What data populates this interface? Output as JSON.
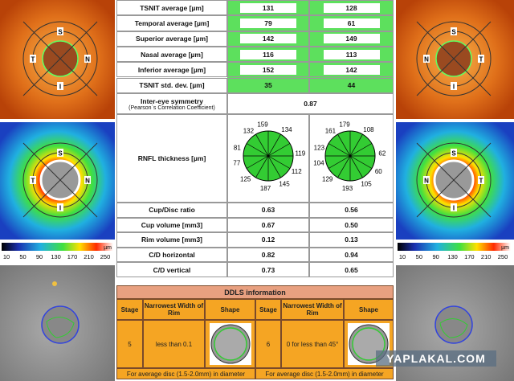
{
  "left_eye": {
    "fundus_labels": [
      "S",
      "T",
      "N",
      "I"
    ],
    "map_labels": [
      "S",
      "T",
      "N",
      "I"
    ],
    "colorbar": {
      "ticks": [
        "10",
        "50",
        "90",
        "130",
        "170",
        "210",
        "250"
      ],
      "unit": "µm"
    }
  },
  "right_eye": {
    "fundus_labels": [
      "S",
      "N",
      "T",
      "I"
    ],
    "map_labels": [
      "S",
      "N",
      "T",
      "I"
    ],
    "colorbar": {
      "ticks": [
        "10",
        "50",
        "90",
        "130",
        "170",
        "210",
        "250"
      ],
      "unit": "µm"
    }
  },
  "averages": [
    {
      "label": "TSNIT average [µm]",
      "od": "131",
      "os": "128"
    },
    {
      "label": "Temporal average [µm]",
      "od": "79",
      "os": "61"
    },
    {
      "label": "Superior average [µm]",
      "od": "142",
      "os": "149"
    },
    {
      "label": "Nasal average [µm]",
      "od": "116",
      "os": "113"
    },
    {
      "label": "Inferior average [µm]",
      "od": "152",
      "os": "142"
    },
    {
      "label": "TSNIT std. dev. [µm]",
      "od": "35",
      "os": "44"
    }
  ],
  "symmetry": {
    "label": "Inter-eye symmetry",
    "sublabel": "(Pearson`s Correlation Coefficient)",
    "value": "0.87"
  },
  "rnfl": {
    "label": "RNFL thickness [µm]",
    "od": [
      "159",
      "134",
      "119",
      "112",
      "145",
      "187",
      "125",
      "77",
      "81",
      "132"
    ],
    "os": [
      "179",
      "108",
      "62",
      "60",
      "105",
      "193",
      "129",
      "104",
      "123",
      "161"
    ]
  },
  "ratios": [
    {
      "label": "Cup/Disc ratio",
      "od": "0.63",
      "os": "0.56"
    },
    {
      "label": "Cup volume [mm3]",
      "od": "0.67",
      "os": "0.50"
    },
    {
      "label": "Rim volume [mm3]",
      "od": "0.12",
      "os": "0.13"
    },
    {
      "label": "C/D horizontal",
      "od": "0.82",
      "os": "0.94"
    },
    {
      "label": "C/D vertical",
      "od": "0.73",
      "os": "0.65"
    }
  ],
  "ddls": {
    "title": "DDLS information",
    "headers": [
      "Stage",
      "Narrowest Width of Rim",
      "Shape",
      "Stage",
      "Narrowest Width of Rim",
      "Shape"
    ],
    "row": [
      "5",
      "less than 0.1",
      "6",
      "0 for less than 45°"
    ],
    "footers": [
      "For average disc (1.5-2.0mm) in diameter",
      "For average disc (1.5-2.0mm) in diameter"
    ]
  },
  "watermark": "YAPLAKAL.COM"
}
